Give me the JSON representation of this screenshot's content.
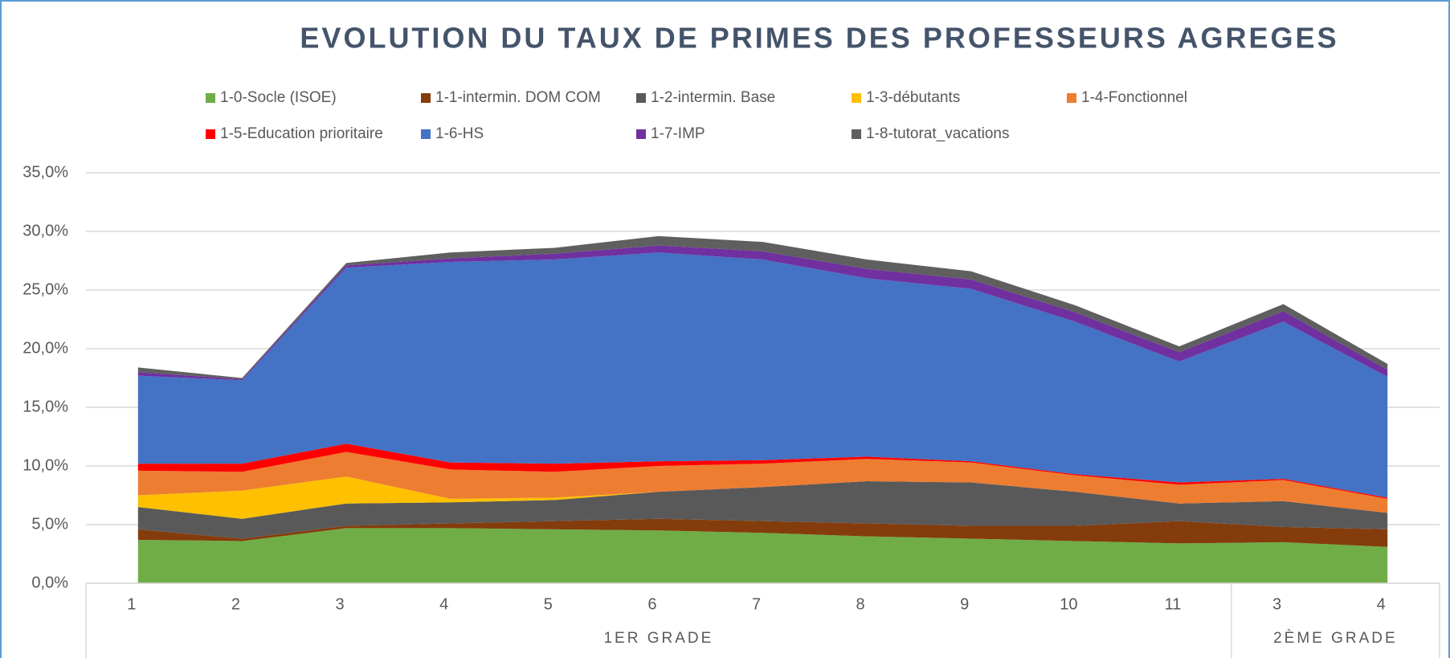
{
  "chart_data": {
    "type": "stacked_area",
    "title": "EVOLUTION DU TAUX DE PRIMES DES PROFESSEURS AGREGES",
    "categories": [
      "1",
      "2",
      "3",
      "4",
      "5",
      "6",
      "7",
      "8",
      "9",
      "10",
      "11",
      "3",
      "4"
    ],
    "groups": [
      {
        "label": "1ER GRADE",
        "count": 11
      },
      {
        "label": "2ÈME GRADE",
        "count": 2
      }
    ],
    "series": [
      {
        "name": "1-0-Socle (ISOE)",
        "color": "#70ad47",
        "values": [
          3.7,
          3.6,
          4.7,
          4.7,
          4.6,
          4.5,
          4.3,
          4.0,
          3.8,
          3.6,
          3.4,
          3.5,
          3.1
        ]
      },
      {
        "name": "1-1-intermin. DOM COM",
        "color": "#843c0c",
        "values": [
          0.9,
          0.2,
          0.2,
          0.4,
          0.7,
          1.0,
          1.0,
          1.1,
          1.1,
          1.3,
          1.9,
          1.3,
          1.5
        ]
      },
      {
        "name": "1-2-intermin. Base",
        "color": "#595959",
        "values": [
          1.9,
          1.7,
          1.9,
          1.8,
          1.8,
          2.3,
          2.9,
          3.6,
          3.7,
          2.9,
          1.5,
          2.2,
          1.4
        ]
      },
      {
        "name": "1-3-débutants",
        "color": "#ffc000",
        "values": [
          1.0,
          2.4,
          2.3,
          0.3,
          0.2,
          0,
          0,
          0,
          0,
          0,
          0,
          0,
          0
        ]
      },
      {
        "name": "1-4-Fonctionnel",
        "color": "#ed7d31",
        "values": [
          2.1,
          1.6,
          2.1,
          2.5,
          2.2,
          2.2,
          2.0,
          1.9,
          1.7,
          1.4,
          1.6,
          1.8,
          1.2
        ]
      },
      {
        "name": "1-5-Education prioritaire",
        "color": "#ff0000",
        "values": [
          0.6,
          0.7,
          0.7,
          0.6,
          0.7,
          0.4,
          0.3,
          0.2,
          0.1,
          0.1,
          0.2,
          0.1,
          0.1
        ]
      },
      {
        "name": "1-6-HS",
        "color": "#4472c4",
        "values": [
          7.5,
          7.1,
          15.0,
          17.1,
          17.4,
          17.8,
          17.1,
          15.2,
          14.7,
          13.0,
          10.3,
          13.4,
          10.3
        ]
      },
      {
        "name": "1-7-IMP",
        "color": "#7030a0",
        "values": [
          0.3,
          0.1,
          0.2,
          0.3,
          0.5,
          0.6,
          0.7,
          0.8,
          0.8,
          0.8,
          0.8,
          0.9,
          0.6
        ]
      },
      {
        "name": "1-8-tutorat_vacations",
        "color": "#5f5f5f",
        "values": [
          0.4,
          0.1,
          0.2,
          0.5,
          0.5,
          0.8,
          0.8,
          0.8,
          0.7,
          0.6,
          0.5,
          0.6,
          0.5
        ]
      }
    ],
    "ylim": [
      0,
      35
    ],
    "yticks": [
      {
        "value": 0,
        "label": "0,0%"
      },
      {
        "value": 5,
        "label": "5,0%"
      },
      {
        "value": 10,
        "label": "10,0%"
      },
      {
        "value": 15,
        "label": "15,0%"
      },
      {
        "value": 20,
        "label": "20,0%"
      },
      {
        "value": 25,
        "label": "25,0%"
      },
      {
        "value": 30,
        "label": "30,0%"
      },
      {
        "value": 35,
        "label": "35,0%"
      }
    ],
    "grid": true,
    "legend": "top"
  }
}
